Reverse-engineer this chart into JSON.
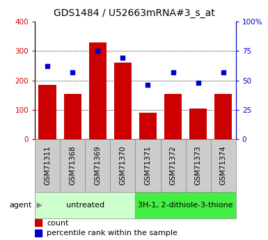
{
  "title": "GDS1484 / U52663mRNA#3_s_at",
  "samples": [
    "GSM71311",
    "GSM71368",
    "GSM71369",
    "GSM71370",
    "GSM71371",
    "GSM71372",
    "GSM71373",
    "GSM71374"
  ],
  "counts": [
    185,
    155,
    330,
    260,
    90,
    155,
    105,
    155
  ],
  "percentiles": [
    62,
    57,
    75,
    69,
    46,
    57,
    48,
    57
  ],
  "bar_color": "#cc0000",
  "scatter_color": "#0000cc",
  "left_ylim": [
    0,
    400
  ],
  "right_ylim": [
    0,
    100
  ],
  "left_yticks": [
    0,
    100,
    200,
    300,
    400
  ],
  "right_yticks": [
    0,
    25,
    50,
    75,
    100
  ],
  "right_yticklabels": [
    "0",
    "25",
    "50",
    "75",
    "100%"
  ],
  "group1_label": "untreated",
  "group2_label": "3H-1, 2-dithiole-3-thione",
  "group1_indices": [
    0,
    1,
    2,
    3
  ],
  "group2_indices": [
    4,
    5,
    6,
    7
  ],
  "agent_label": "agent",
  "legend_count_label": "count",
  "legend_pct_label": "percentile rank within the sample",
  "group1_color": "#ccffcc",
  "group2_color": "#44ee44",
  "sample_box_color": "#cccccc",
  "title_fontsize": 10,
  "tick_fontsize": 7.5,
  "label_fontsize": 8
}
